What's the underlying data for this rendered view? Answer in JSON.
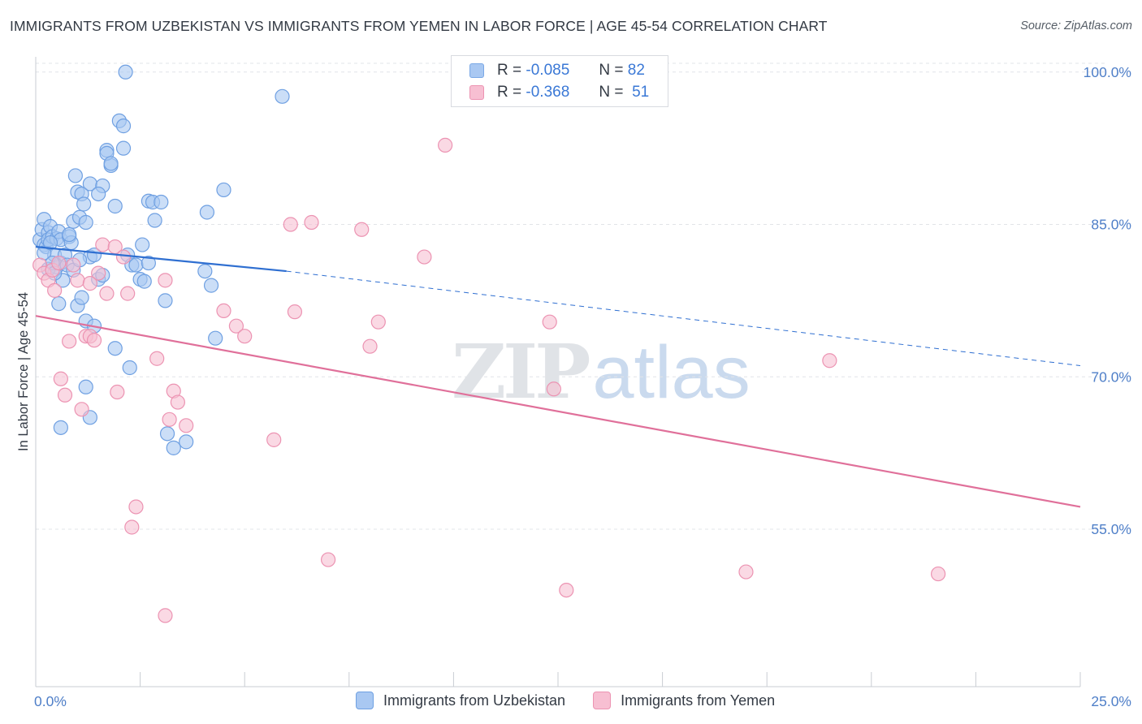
{
  "title": "IMMIGRANTS FROM UZBEKISTAN VS IMMIGRANTS FROM YEMEN IN LABOR FORCE | AGE 45-54 CORRELATION CHART",
  "source": "Source: ZipAtlas.com",
  "watermark": {
    "zip": "ZIP",
    "atlas": "atlas"
  },
  "legend": {
    "rows": [
      {
        "r_label": "R =",
        "r_value": "-0.085",
        "n_label": "N =",
        "n_value": "82",
        "color": "#a9c8f2",
        "border": "#7aa8e6"
      },
      {
        "r_label": "R =",
        "r_value": "-0.368",
        "n_label": "N =",
        "n_value": "51",
        "color": "#f7bfd2",
        "border": "#ec93b2"
      }
    ]
  },
  "chart_data": {
    "type": "scatter",
    "title": "IMMIGRANTS FROM UZBEKISTAN VS IMMIGRANTS FROM YEMEN IN LABOR FORCE | AGE 45-54 CORRELATION CHART",
    "xlabel": "",
    "ylabel": "In Labor Force | Age 45-54",
    "xlim": [
      0,
      25
    ],
    "ylim": [
      39.5,
      101.5
    ],
    "x_ticks": [
      {
        "value": 0,
        "label": "0.0%"
      },
      {
        "value": 25,
        "label": "25.0%"
      }
    ],
    "x_minor_ticks": [
      0,
      2.5,
      5,
      7.5,
      10,
      12.5,
      15,
      17.5,
      20,
      22.5,
      25
    ],
    "y_ticks": [
      {
        "value": 100,
        "label": "100.0%"
      },
      {
        "value": 85,
        "label": "85.0%"
      },
      {
        "value": 70,
        "label": "70.0%"
      },
      {
        "value": 55,
        "label": "55.0%"
      }
    ],
    "grid": true,
    "series": [
      {
        "name": "Immigrants from Uzbekistan",
        "color": "#a9c8f2",
        "stroke": "#6fa0e2",
        "trend": {
          "x0": 0,
          "y0": 82.8,
          "x1": 6,
          "y1": 80.4,
          "dash_to_x": 25,
          "dash_to_y": 71.1,
          "color": "#2f6fd1"
        },
        "points": [
          [
            0.1,
            83.5
          ],
          [
            0.15,
            84.5
          ],
          [
            0.2,
            83.0
          ],
          [
            0.2,
            85.5
          ],
          [
            0.25,
            82.8
          ],
          [
            0.3,
            84.2
          ],
          [
            0.3,
            83.5
          ],
          [
            0.35,
            84.8
          ],
          [
            0.4,
            83.8
          ],
          [
            0.45,
            82.0
          ],
          [
            0.5,
            83.6
          ],
          [
            0.5,
            80.8
          ],
          [
            0.55,
            84.3
          ],
          [
            0.6,
            83.5
          ],
          [
            0.6,
            81.2
          ],
          [
            0.65,
            79.5
          ],
          [
            0.7,
            82.0
          ],
          [
            0.75,
            81.0
          ],
          [
            0.8,
            83.8
          ],
          [
            0.85,
            83.2
          ],
          [
            0.9,
            80.5
          ],
          [
            0.9,
            85.3
          ],
          [
            0.95,
            89.8
          ],
          [
            1.0,
            88.2
          ],
          [
            1.05,
            85.7
          ],
          [
            1.1,
            88.0
          ],
          [
            1.15,
            87.0
          ],
          [
            1.2,
            85.2
          ],
          [
            1.3,
            89.0
          ],
          [
            1.3,
            81.8
          ],
          [
            1.4,
            82.0
          ],
          [
            1.5,
            79.6
          ],
          [
            1.6,
            88.8
          ],
          [
            1.7,
            92.3
          ],
          [
            1.8,
            90.8
          ],
          [
            1.9,
            86.8
          ],
          [
            2.0,
            95.2
          ],
          [
            2.1,
            92.5
          ],
          [
            2.2,
            82.0
          ],
          [
            2.3,
            81.0
          ],
          [
            2.4,
            81.0
          ],
          [
            2.5,
            79.6
          ],
          [
            2.6,
            79.4
          ],
          [
            2.7,
            87.3
          ],
          [
            2.8,
            87.2
          ],
          [
            2.85,
            85.4
          ],
          [
            3.0,
            87.2
          ],
          [
            3.1,
            77.5
          ],
          [
            2.1,
            94.7
          ],
          [
            2.15,
            100.0
          ],
          [
            0.2,
            82.2
          ],
          [
            0.3,
            80.6
          ],
          [
            0.4,
            81.2
          ],
          [
            0.45,
            80.2
          ],
          [
            0.55,
            77.2
          ],
          [
            1.0,
            77.0
          ],
          [
            1.2,
            75.5
          ],
          [
            1.4,
            75.0
          ],
          [
            1.9,
            72.8
          ],
          [
            2.25,
            70.9
          ],
          [
            3.15,
            64.4
          ],
          [
            3.3,
            63.0
          ],
          [
            3.6,
            63.6
          ],
          [
            1.2,
            69.0
          ],
          [
            1.3,
            66.0
          ],
          [
            0.6,
            65.0
          ],
          [
            1.7,
            92.0
          ],
          [
            1.5,
            88.0
          ],
          [
            5.9,
            97.6
          ],
          [
            4.5,
            88.4
          ],
          [
            4.1,
            86.2
          ],
          [
            4.05,
            80.4
          ],
          [
            4.2,
            79.0
          ],
          [
            4.3,
            73.8
          ],
          [
            1.8,
            91.0
          ],
          [
            1.1,
            77.8
          ],
          [
            2.7,
            81.2
          ],
          [
            2.55,
            83.0
          ],
          [
            0.8,
            84.0
          ],
          [
            0.35,
            83.2
          ],
          [
            1.05,
            81.5
          ],
          [
            1.6,
            80.0
          ]
        ]
      },
      {
        "name": "Immigrants from Yemen",
        "color": "#f7bfd2",
        "stroke": "#ec93b2",
        "trend": {
          "x0": 0,
          "y0": 76.0,
          "x1": 25,
          "y1": 57.2,
          "color": "#e0709a"
        },
        "points": [
          [
            0.1,
            81.0
          ],
          [
            0.2,
            80.2
          ],
          [
            0.3,
            79.5
          ],
          [
            0.4,
            80.5
          ],
          [
            0.45,
            78.5
          ],
          [
            0.55,
            81.2
          ],
          [
            0.6,
            69.8
          ],
          [
            0.7,
            68.2
          ],
          [
            0.8,
            73.5
          ],
          [
            1.0,
            79.5
          ],
          [
            1.1,
            66.8
          ],
          [
            1.2,
            74.0
          ],
          [
            1.3,
            74.0
          ],
          [
            1.4,
            73.6
          ],
          [
            1.5,
            80.2
          ],
          [
            1.6,
            83.0
          ],
          [
            1.7,
            78.2
          ],
          [
            1.9,
            82.8
          ],
          [
            1.95,
            68.5
          ],
          [
            2.1,
            81.8
          ],
          [
            2.2,
            78.2
          ],
          [
            2.4,
            57.2
          ],
          [
            2.3,
            55.2
          ],
          [
            2.9,
            71.8
          ],
          [
            3.1,
            79.5
          ],
          [
            3.3,
            68.6
          ],
          [
            3.4,
            67.5
          ],
          [
            3.2,
            65.8
          ],
          [
            3.6,
            65.2
          ],
          [
            4.5,
            76.5
          ],
          [
            4.8,
            75.0
          ],
          [
            5.0,
            74.0
          ],
          [
            5.7,
            63.8
          ],
          [
            6.1,
            85.0
          ],
          [
            6.2,
            76.4
          ],
          [
            6.6,
            85.2
          ],
          [
            7.0,
            52.0
          ],
          [
            7.8,
            84.5
          ],
          [
            8.0,
            73.0
          ],
          [
            8.2,
            75.4
          ],
          [
            9.3,
            81.8
          ],
          [
            9.8,
            92.8
          ],
          [
            12.3,
            75.4
          ],
          [
            12.4,
            68.8
          ],
          [
            12.7,
            49.0
          ],
          [
            17.0,
            50.8
          ],
          [
            19.0,
            71.6
          ],
          [
            21.6,
            50.6
          ],
          [
            3.1,
            46.5
          ],
          [
            1.3,
            79.2
          ],
          [
            0.9,
            81.0
          ]
        ]
      }
    ]
  }
}
